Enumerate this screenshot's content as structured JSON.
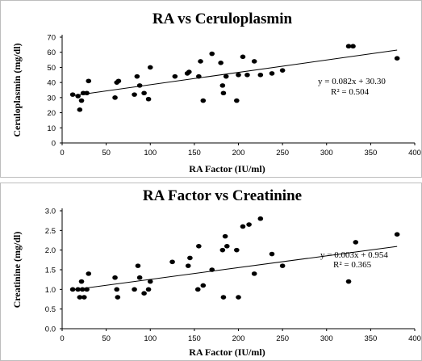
{
  "chart_data": [
    {
      "type": "scatter",
      "title": "RA vs Ceruloplasmin",
      "xlabel": "RA Factor (IU/ml)",
      "ylabel": "Ceruloplasmin (mg/dl)",
      "xlim": [
        0,
        400
      ],
      "ylim": [
        0,
        70
      ],
      "xticks": [
        0,
        50,
        100,
        150,
        200,
        250,
        300,
        350,
        400
      ],
      "yticks": [
        0,
        10,
        20,
        30,
        40,
        50,
        60,
        70
      ],
      "xtick_labels": [
        "0",
        "50",
        "100",
        "150",
        "200",
        "250",
        "300",
        "350",
        "400"
      ],
      "ytick_labels": [
        "0",
        "10",
        "20",
        "30",
        "40",
        "50",
        "60",
        "70"
      ],
      "grid": false,
      "trendline": {
        "slope": 0.082,
        "intercept": 30.3,
        "x_range": [
          10,
          380
        ]
      },
      "annotations": [
        "y = 0.082x + 30.30",
        "R² = 0.504"
      ],
      "points": [
        [
          12,
          32
        ],
        [
          18,
          31
        ],
        [
          20,
          22
        ],
        [
          22,
          28
        ],
        [
          24,
          33
        ],
        [
          28,
          33
        ],
        [
          30,
          41
        ],
        [
          60,
          30
        ],
        [
          62,
          40
        ],
        [
          64,
          41
        ],
        [
          82,
          32
        ],
        [
          85,
          44
        ],
        [
          88,
          38
        ],
        [
          93,
          33
        ],
        [
          98,
          29
        ],
        [
          100,
          50
        ],
        [
          128,
          44
        ],
        [
          142,
          46
        ],
        [
          144,
          47
        ],
        [
          155,
          44
        ],
        [
          157,
          54
        ],
        [
          160,
          28
        ],
        [
          170,
          59
        ],
        [
          180,
          53
        ],
        [
          182,
          38
        ],
        [
          183,
          33
        ],
        [
          186,
          44
        ],
        [
          198,
          28
        ],
        [
          200,
          45
        ],
        [
          205,
          57
        ],
        [
          210,
          45
        ],
        [
          218,
          54
        ],
        [
          225,
          45
        ],
        [
          238,
          46
        ],
        [
          250,
          48
        ],
        [
          325,
          64
        ],
        [
          330,
          64
        ],
        [
          380,
          56
        ]
      ]
    },
    {
      "type": "scatter",
      "title": "RA Factor vs Creatinine",
      "xlabel": "RA Factor (IU/ml)",
      "ylabel": "Creatinine (mg/dl)",
      "xlim": [
        0,
        400
      ],
      "ylim": [
        0,
        3.0
      ],
      "xticks": [
        0,
        50,
        100,
        150,
        200,
        250,
        300,
        350,
        400
      ],
      "yticks": [
        0,
        0.5,
        1.0,
        1.5,
        2.0,
        2.5,
        3.0
      ],
      "xtick_labels": [
        "0",
        "50",
        "100",
        "150",
        "200",
        "250",
        "300",
        "350",
        "400"
      ],
      "ytick_labels": [
        "0.0",
        "0.5",
        "1.0",
        "1.5",
        "2.0",
        "2.5",
        "3.0"
      ],
      "grid": false,
      "trendline": {
        "slope": 0.003,
        "intercept": 0.954,
        "x_range": [
          10,
          380
        ]
      },
      "annotations": [
        "y = 0.003x + 0.954",
        "R² = 0.365"
      ],
      "points": [
        [
          12,
          1.0
        ],
        [
          18,
          1.0
        ],
        [
          20,
          0.8
        ],
        [
          22,
          1.2
        ],
        [
          23,
          1.0
        ],
        [
          25,
          0.8
        ],
        [
          28,
          1.0
        ],
        [
          30,
          1.4
        ],
        [
          60,
          1.3
        ],
        [
          62,
          1.0
        ],
        [
          63,
          0.8
        ],
        [
          82,
          1.0
        ],
        [
          86,
          1.6
        ],
        [
          88,
          1.3
        ],
        [
          93,
          0.9
        ],
        [
          98,
          1.0
        ],
        [
          100,
          1.2
        ],
        [
          125,
          1.7
        ],
        [
          143,
          1.6
        ],
        [
          145,
          1.8
        ],
        [
          154,
          1.0
        ],
        [
          155,
          2.1
        ],
        [
          160,
          1.1
        ],
        [
          170,
          1.5
        ],
        [
          182,
          2.0
        ],
        [
          183,
          0.8
        ],
        [
          185,
          2.35
        ],
        [
          187,
          2.1
        ],
        [
          198,
          2.0
        ],
        [
          200,
          0.8
        ],
        [
          205,
          2.6
        ],
        [
          212,
          2.65
        ],
        [
          218,
          1.4
        ],
        [
          225,
          2.8
        ],
        [
          238,
          1.9
        ],
        [
          250,
          1.6
        ],
        [
          325,
          1.2
        ],
        [
          333,
          2.2
        ],
        [
          380,
          2.4
        ]
      ]
    }
  ]
}
